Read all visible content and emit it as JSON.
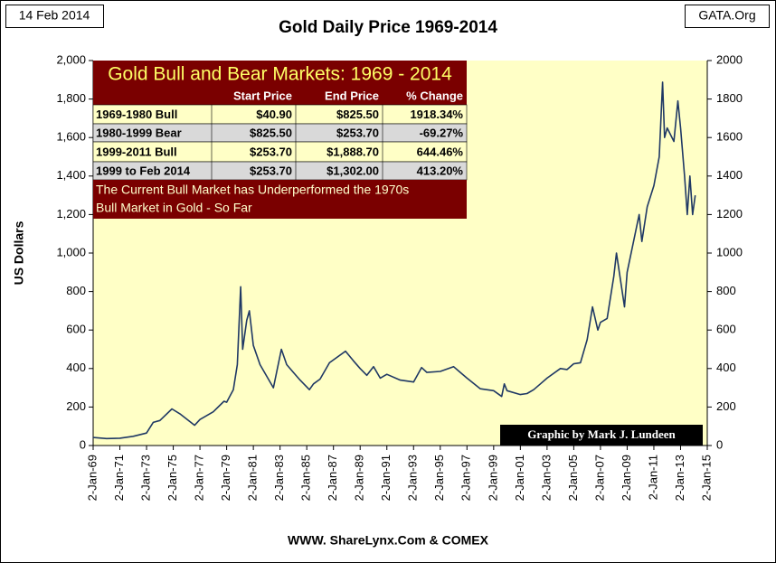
{
  "chart_data": {
    "type": "line",
    "title": "Gold Daily Price 1969-2014",
    "date_label": "14 Feb 2014",
    "source_corner": "GATA.Org",
    "ylabel": "US Dollars",
    "credit": "Graphic by Mark J. Lundeen",
    "footer": "WWW. ShareLynx.Com & COMEX",
    "xlim": [
      1969,
      2015
    ],
    "xticks": [
      {
        "value": 1969,
        "label": "2-Jan-69"
      },
      {
        "value": 1971,
        "label": "2-Jan-71"
      },
      {
        "value": 1973,
        "label": "2-Jan-73"
      },
      {
        "value": 1975,
        "label": "2-Jan-75"
      },
      {
        "value": 1977,
        "label": "2-Jan-77"
      },
      {
        "value": 1979,
        "label": "2-Jan-79"
      },
      {
        "value": 1981,
        "label": "2-Jan-81"
      },
      {
        "value": 1983,
        "label": "2-Jan-83"
      },
      {
        "value": 1985,
        "label": "2-Jan-85"
      },
      {
        "value": 1987,
        "label": "2-Jan-87"
      },
      {
        "value": 1989,
        "label": "2-Jan-89"
      },
      {
        "value": 1991,
        "label": "2-Jan-91"
      },
      {
        "value": 1993,
        "label": "2-Jan-93"
      },
      {
        "value": 1995,
        "label": "2-Jan-95"
      },
      {
        "value": 1997,
        "label": "2-Jan-97"
      },
      {
        "value": 1999,
        "label": "2-Jan-99"
      },
      {
        "value": 2001,
        "label": "2-Jan-01"
      },
      {
        "value": 2003,
        "label": "2-Jan-03"
      },
      {
        "value": 2005,
        "label": "2-Jan-05"
      },
      {
        "value": 2007,
        "label": "2-Jan-07"
      },
      {
        "value": 2009,
        "label": "2-Jan-09"
      },
      {
        "value": 2011,
        "label": "2-Jan-11"
      },
      {
        "value": 2013,
        "label": "2-Jan-13"
      },
      {
        "value": 2015,
        "label": "2-Jan-15"
      }
    ],
    "ylim": [
      0,
      2000
    ],
    "yticks": [
      0,
      200,
      400,
      600,
      800,
      {
        "value": 1000,
        "label": "1,000"
      },
      {
        "value": 1200,
        "label": "1,200"
      },
      {
        "value": 1400,
        "label": "1,400"
      },
      {
        "value": 1600,
        "label": "1,600"
      },
      {
        "value": 1800,
        "label": "1,800"
      },
      {
        "value": 2000,
        "label": "2,000"
      }
    ],
    "y2lim": [
      0,
      2000
    ],
    "y2ticks": [
      0,
      200,
      400,
      600,
      800,
      1000,
      1200,
      1400,
      1600,
      1800,
      2000
    ],
    "x": [
      1969.0,
      1970.0,
      1971.0,
      1972.0,
      1973.0,
      1973.5,
      1974.0,
      1974.9,
      1975.5,
      1976.6,
      1977.0,
      1978.0,
      1978.8,
      1979.0,
      1979.5,
      1979.8,
      1980.05,
      1980.2,
      1980.5,
      1980.7,
      1981.0,
      1981.5,
      1982.5,
      1983.1,
      1983.5,
      1984.0,
      1984.5,
      1985.2,
      1985.5,
      1986.0,
      1986.7,
      1987.9,
      1988.5,
      1989.0,
      1989.5,
      1990.0,
      1990.5,
      1991.0,
      1992.0,
      1993.0,
      1993.6,
      1994.0,
      1995.0,
      1996.0,
      1997.0,
      1998.0,
      1999.0,
      1999.6,
      1999.8,
      2000.0,
      2001.0,
      2001.5,
      2002.0,
      2002.5,
      2003.0,
      2004.0,
      2004.5,
      2005.0,
      2005.5,
      2006.0,
      2006.4,
      2006.8,
      2007.0,
      2007.5,
      2008.0,
      2008.2,
      2008.8,
      2009.0,
      2009.9,
      2010.1,
      2010.5,
      2011.0,
      2011.4,
      2011.65,
      2011.8,
      2012.0,
      2012.5,
      2012.8,
      2013.0,
      2013.3,
      2013.5,
      2013.7,
      2013.9,
      2014.1
    ],
    "series": [
      {
        "name": "Gold",
        "color": "#1f3864",
        "values": [
          42,
          36,
          38,
          48,
          65,
          120,
          130,
          190,
          165,
          105,
          135,
          175,
          230,
          225,
          290,
          420,
          825,
          500,
          650,
          700,
          520,
          420,
          300,
          500,
          420,
          380,
          340,
          290,
          320,
          345,
          430,
          490,
          440,
          400,
          365,
          410,
          350,
          370,
          340,
          330,
          405,
          380,
          385,
          410,
          350,
          295,
          285,
          255,
          320,
          285,
          265,
          270,
          290,
          320,
          350,
          400,
          395,
          425,
          430,
          550,
          720,
          600,
          640,
          660,
          880,
          1000,
          720,
          900,
          1200,
          1060,
          1240,
          1350,
          1500,
          1888,
          1600,
          1650,
          1580,
          1790,
          1650,
          1400,
          1200,
          1400,
          1200,
          1300
        ]
      }
    ],
    "table": {
      "title": "Gold Bull and Bear Markets: 1969 - 2014",
      "header": [
        "Start Price",
        "End Price",
        "% Change"
      ],
      "rows": [
        [
          "1969-1980 Bull",
          "$40.90",
          "$825.50",
          "1918.34%"
        ],
        [
          "1980-1999 Bear",
          "$825.50",
          "$253.70",
          "-69.27%"
        ],
        [
          "1999-2011 Bull",
          "$253.70",
          "$1,888.70",
          "644.46%"
        ],
        [
          "1999 to Feb 2014",
          "$253.70",
          "$1,302.00",
          "413.20%"
        ]
      ],
      "note": [
        "The Current Bull Market has Underperformed the 1970s",
        "Bull Market in Gold - So Far"
      ]
    }
  }
}
